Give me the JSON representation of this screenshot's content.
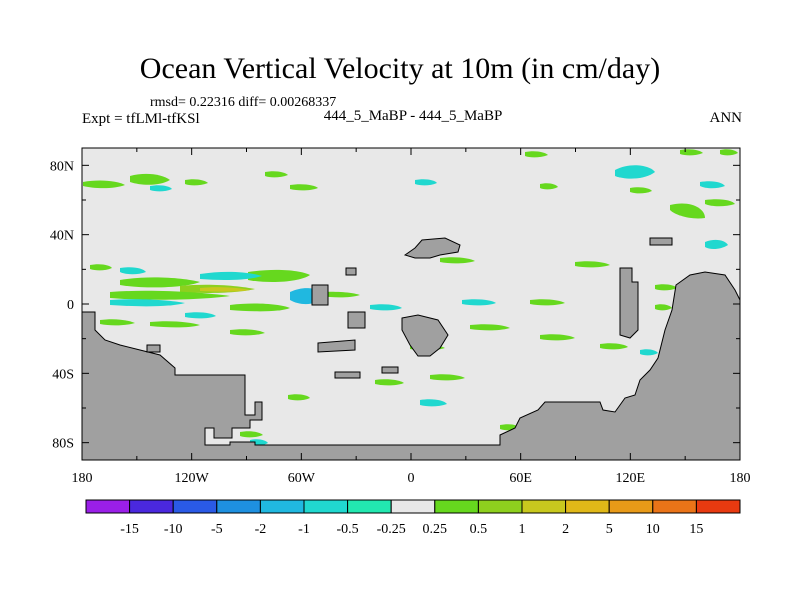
{
  "header": {
    "title": "Ocean Vertical Velocity at 10m (in cm/day)",
    "stats": "rmsd= 0.22316 diff= 0.00268337",
    "expt": "Expt = tfLMl-tfKSl",
    "case": "444_5_MaBP - 444_5_MaBP",
    "season": "ANN"
  },
  "chart_data": {
    "type": "heatmap",
    "title": "Ocean Vertical Velocity at 10m (in cm/day)",
    "xlabel": "",
    "ylabel": "",
    "xlim": [
      -180,
      180
    ],
    "ylim": [
      -90,
      90
    ],
    "x_ticks": [
      {
        "value": -180,
        "label": "180"
      },
      {
        "value": -120,
        "label": "120W"
      },
      {
        "value": -60,
        "label": "60W"
      },
      {
        "value": 0,
        "label": "0"
      },
      {
        "value": 60,
        "label": "60E"
      },
      {
        "value": 120,
        "label": "120E"
      },
      {
        "value": 180,
        "label": "180"
      }
    ],
    "y_ticks": [
      {
        "value": 80,
        "label": "80N"
      },
      {
        "value": 40,
        "label": "40N"
      },
      {
        "value": 0,
        "label": "0"
      },
      {
        "value": -40,
        "label": "40S"
      },
      {
        "value": -80,
        "label": "80S"
      }
    ],
    "land_color": "#a0a0a0",
    "background_color": "#e8e8e8",
    "colorbar": {
      "boundaries": [
        "-15",
        "-10",
        "-5",
        "-2",
        "-1",
        "-0.5",
        "-0.25",
        "0.25",
        "0.5",
        "1",
        "2",
        "5",
        "10",
        "15"
      ],
      "colors": [
        "#9a1fe8",
        "#4a28de",
        "#2a5ae6",
        "#1e90e0",
        "#20b8e0",
        "#20d8cf",
        "#22e8b0",
        "#e8e8e8",
        "#66d81e",
        "#8ed01e",
        "#c8c81e",
        "#e0b818",
        "#e89a18",
        "#ea7418",
        "#e83a10"
      ]
    }
  }
}
